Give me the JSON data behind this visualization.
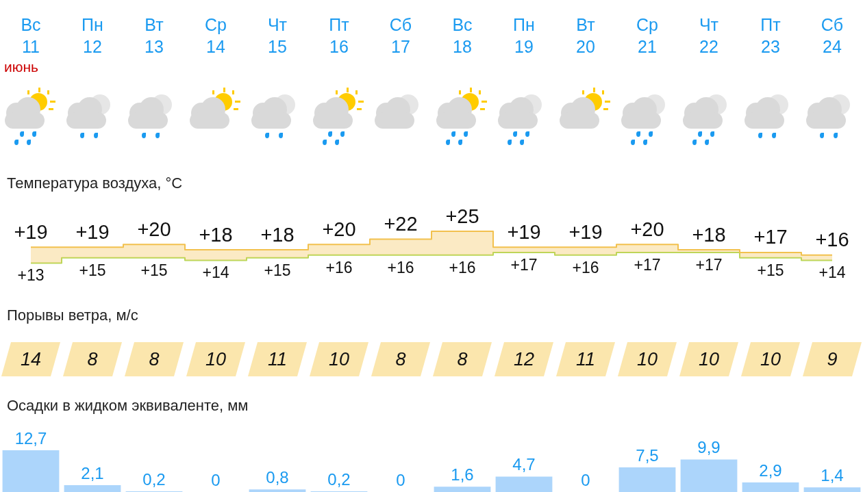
{
  "chart_data": [
    {
      "type": "step",
      "title": "Температура воздуха, °C",
      "categories": [
        "Вс\n11",
        "Пн\n12",
        "Вт\n13",
        "Ср\n14",
        "Чт\n15",
        "Пт\n16",
        "Сб\n17",
        "Вс\n18",
        "Пн\n19",
        "Вт\n20",
        "Ср\n21",
        "Чт\n22",
        "Пт\n23",
        "Сб\n24"
      ],
      "annotations": [
        "июнь"
      ],
      "series": [
        {
          "color": "#f2c14e",
          "values": [
            19,
            19,
            20,
            18,
            18,
            20,
            22,
            25,
            19,
            19,
            20,
            18,
            17,
            16
          ],
          "value_labels": [
            "+19",
            "+19",
            "+20",
            "+18",
            "+18",
            "+20",
            "+22",
            "+25",
            "+19",
            "+19",
            "+20",
            "+18",
            "+17",
            "+16"
          ]
        },
        {
          "color": "#b5d95a",
          "values": [
            13,
            15,
            15,
            14,
            15,
            16,
            16,
            16,
            17,
            16,
            17,
            17,
            15,
            14
          ],
          "value_labels": [
            "+13",
            "+15",
            "+15",
            "+14",
            "+15",
            "+16",
            "+16",
            "+16",
            "+17",
            "+16",
            "+17",
            "+17",
            "+15",
            "+14"
          ]
        }
      ],
      "legend": false
    },
    {
      "type": "other",
      "title": "Порывы ветра, м/с",
      "values": [
        14,
        8,
        8,
        10,
        11,
        10,
        8,
        8,
        12,
        11,
        10,
        10,
        10,
        9
      ],
      "color": "#fbe6ad",
      "data_labels": true
    },
    {
      "type": "bar",
      "title": "Осадки в жидком эквиваленте, мм",
      "values": [
        12.7,
        2.1,
        0.2,
        0,
        0.8,
        0.2,
        0,
        1.6,
        4.7,
        0,
        7.5,
        9.9,
        2.9,
        1.4
      ],
      "value_labels": [
        "12,7",
        "2,1",
        "0,2",
        "0",
        "0,8",
        "0,2",
        "0",
        "1,6",
        "4,7",
        "0",
        "7,5",
        "9,9",
        "2,9",
        "1,4"
      ],
      "color": "#acd5fb",
      "legend": false
    }
  ]
}
